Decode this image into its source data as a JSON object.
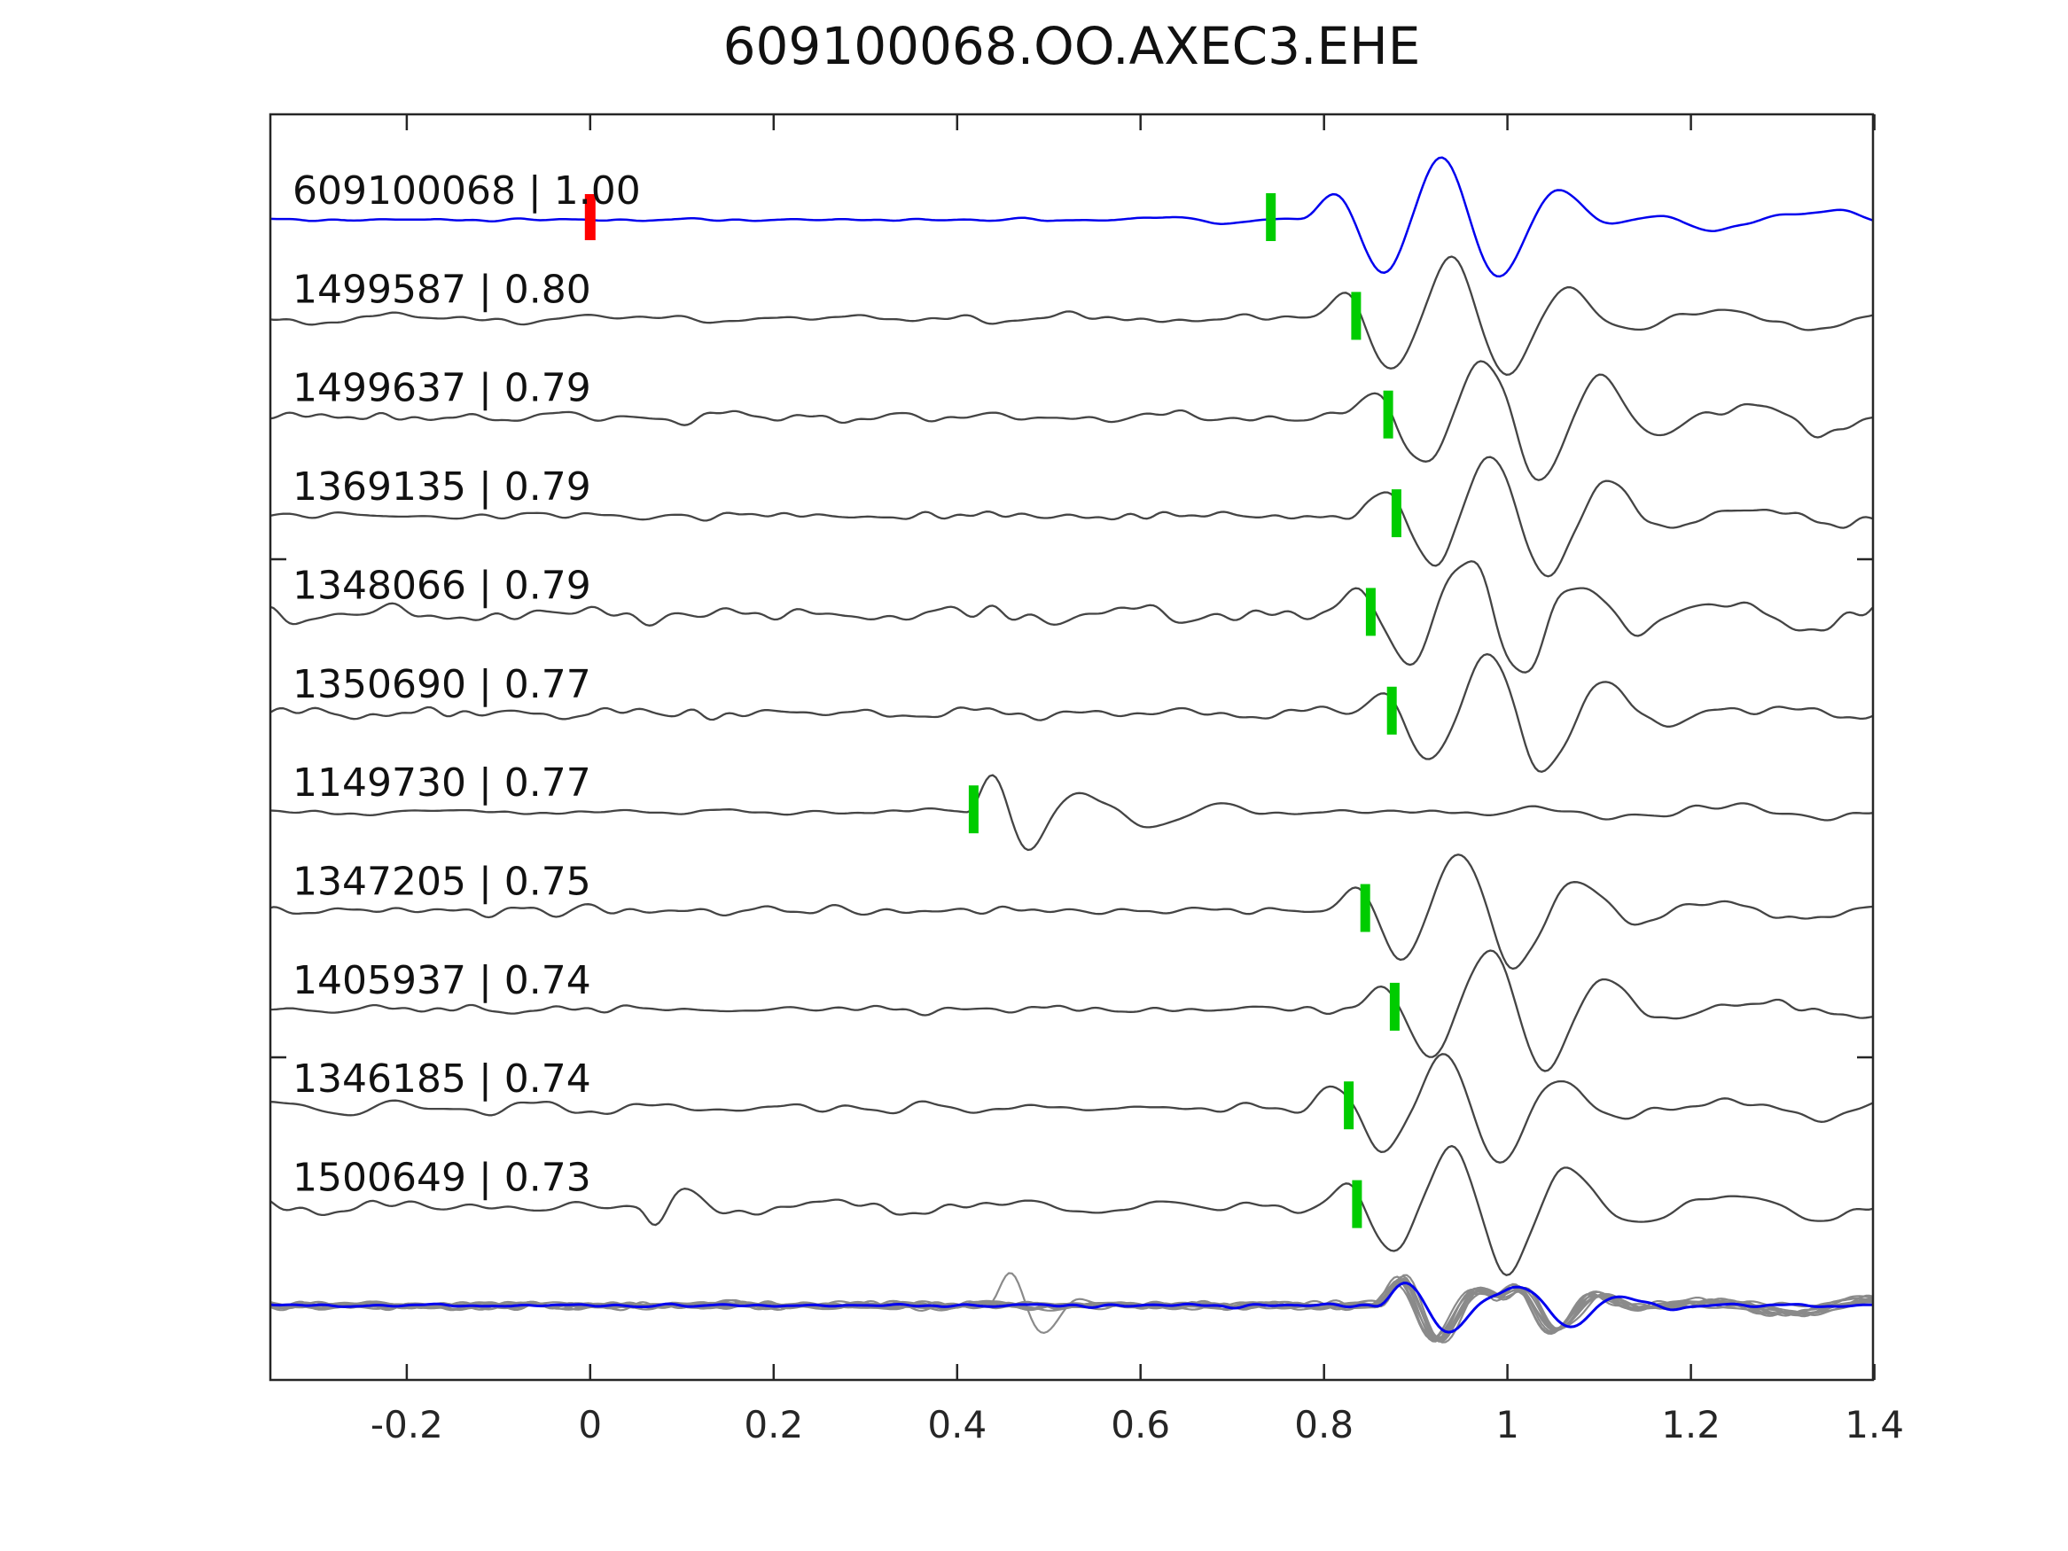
{
  "title": "609100068.OO.AXEC3.EHE",
  "colors": {
    "background": "#ffffff",
    "spine": "#262626",
    "master_trace": "#0000ee",
    "match_trace": "#444444",
    "stack_trace": "#8a8a8a",
    "stack_master": "#0000ee",
    "pick_marker": "#00cc00",
    "reference_marker": "#ff0000",
    "text": "#111111"
  },
  "chart_data": {
    "type": "line",
    "subtype": "seismic-waveform-correlation-section",
    "title": "609100068.OO.AXEC3.EHE",
    "xlabel": "",
    "ylabel": "",
    "grid": false,
    "legend": false,
    "xlim": [
      -0.3487,
      1.3985
    ],
    "x_ticks": [
      {
        "value": -0.2,
        "label": "-0.2"
      },
      {
        "value": 0,
        "label": "0"
      },
      {
        "value": 0.2,
        "label": "0.2"
      },
      {
        "value": 0.4,
        "label": "0.4"
      },
      {
        "value": 0.6,
        "label": "0.6"
      },
      {
        "value": 0.8,
        "label": "0.8"
      },
      {
        "value": 1,
        "label": "1"
      },
      {
        "value": 1.2,
        "label": "1.2"
      },
      {
        "value": 1.4,
        "label": "1.4"
      }
    ],
    "reference_time": 0.0,
    "traces": [
      {
        "id": "609100068",
        "correlation": "1.00",
        "label": "609100068 | 1.00",
        "role": "master",
        "pick_time": 0.742,
        "reference_time": 0.0,
        "seed": 11,
        "noise_amp": 2.3,
        "events": [
          [
            0.77,
            0.1,
            8.0,
            60,
            0
          ],
          [
            0.89,
            0.09,
            7.0,
            40,
            0
          ],
          [
            1.08,
            0.1,
            5.2,
            15,
            0
          ],
          [
            1.3,
            0.09,
            5.0,
            12,
            0
          ],
          [
            0.58,
            0.08,
            6.0,
            4,
            0
          ]
        ]
      },
      {
        "id": "1499587",
        "correlation": "0.80",
        "label": "1499587 | 0.80",
        "role": "match",
        "pick_time": 0.835,
        "seed": 22,
        "noise_amp": 8.0,
        "events": [
          [
            0.78,
            0.1,
            8.0,
            54,
            0
          ],
          [
            0.9,
            0.09,
            7.2,
            42,
            0
          ],
          [
            1.18,
            0.12,
            5.0,
            13,
            0
          ]
        ]
      },
      {
        "id": "1499637",
        "correlation": "0.79",
        "label": "1499637 | 0.79",
        "role": "match",
        "pick_time": 0.87,
        "seed": 33,
        "noise_amp": 10.5,
        "events": [
          [
            0.815,
            0.1,
            8.0,
            56,
            0
          ],
          [
            0.935,
            0.09,
            7.2,
            46,
            0
          ],
          [
            1.2,
            0.12,
            5.0,
            16,
            0
          ]
        ]
      },
      {
        "id": "1369135",
        "correlation": "0.79",
        "label": "1369135 | 0.79",
        "role": "match",
        "pick_time": 0.879,
        "seed": 44,
        "noise_amp": 7.0,
        "events": [
          [
            0.824,
            0.1,
            8.0,
            56,
            0
          ],
          [
            0.944,
            0.09,
            7.2,
            44,
            0
          ],
          [
            1.22,
            0.12,
            5.0,
            12,
            0
          ]
        ]
      },
      {
        "id": "1348066",
        "correlation": "0.79",
        "label": "1348066 | 0.79",
        "role": "match",
        "pick_time": 0.851,
        "seed": 55,
        "noise_amp": 13.0,
        "events": [
          [
            0.796,
            0.1,
            8.0,
            52,
            0
          ],
          [
            0.916,
            0.09,
            7.2,
            46,
            0
          ],
          [
            1.2,
            0.1,
            5.5,
            14,
            0
          ]
        ]
      },
      {
        "id": "1350690",
        "correlation": "0.77",
        "label": "1350690 | 0.77",
        "role": "match",
        "pick_time": 0.874,
        "seed": 66,
        "noise_amp": 8.5,
        "events": [
          [
            0.819,
            0.1,
            8.0,
            54,
            0
          ],
          [
            0.939,
            0.09,
            7.2,
            44,
            0
          ],
          [
            1.25,
            0.1,
            5.0,
            12,
            0
          ]
        ]
      },
      {
        "id": "1149730",
        "correlation": "0.77",
        "label": "1149730 | 0.77",
        "role": "match",
        "pick_time": 0.418,
        "seed": 77,
        "noise_amp": 5.5,
        "events": [
          [
            0.408,
            0.045,
            10.0,
            54,
            0
          ],
          [
            0.5,
            0.09,
            6.5,
            18,
            0
          ],
          [
            0.95,
            0.25,
            4.5,
            7,
            0
          ]
        ]
      },
      {
        "id": "1347205",
        "correlation": "0.75",
        "label": "1347205 | 0.75",
        "role": "match",
        "pick_time": 0.845,
        "seed": 88,
        "noise_amp": 7.5,
        "events": [
          [
            0.79,
            0.1,
            8.0,
            52,
            0
          ],
          [
            0.91,
            0.09,
            7.2,
            42,
            0
          ],
          [
            1.18,
            0.1,
            5.0,
            12,
            0
          ]
        ]
      },
      {
        "id": "1405937",
        "correlation": "0.74",
        "label": "1405937 | 0.74",
        "role": "match",
        "pick_time": 0.877,
        "seed": 99,
        "noise_amp": 7.5,
        "events": [
          [
            0.822,
            0.1,
            8.0,
            54,
            0
          ],
          [
            0.942,
            0.09,
            7.2,
            44,
            0
          ],
          [
            1.24,
            0.1,
            5.0,
            13,
            0
          ]
        ]
      },
      {
        "id": "1346185",
        "correlation": "0.74",
        "label": "1346185 | 0.74",
        "role": "match",
        "pick_time": 0.827,
        "seed": 110,
        "noise_amp": 8.5,
        "events": [
          [
            0.772,
            0.1,
            8.0,
            52,
            0
          ],
          [
            0.892,
            0.09,
            7.2,
            44,
            0
          ],
          [
            1.2,
            0.1,
            5.5,
            13,
            0
          ]
        ]
      },
      {
        "id": "1500649",
        "correlation": "0.73",
        "label": "1500649 | 0.73",
        "role": "match",
        "pick_time": 0.836,
        "seed": 121,
        "noise_amp": 11.0,
        "events": [
          [
            0.781,
            0.1,
            8.0,
            56,
            0
          ],
          [
            0.901,
            0.09,
            7.2,
            46,
            0
          ],
          [
            0.05,
            0.035,
            12.0,
            26,
            3.4
          ],
          [
            1.22,
            0.1,
            5.5,
            16,
            0
          ]
        ]
      }
    ],
    "stack": {
      "description": "all matched traces overlaid, aligned on detection, with master in blue",
      "traces": [
        {
          "role": "gray",
          "seed": 201,
          "noise_amp": 5.5,
          "events": [
            [
              0.85,
              0.055,
              10.2,
              40,
              0
            ],
            [
              0.98,
              0.05,
              10.2,
              33,
              0
            ],
            [
              1.16,
              0.15,
              5.0,
              9,
              0
            ]
          ]
        },
        {
          "role": "gray",
          "seed": 202,
          "noise_amp": 5.0,
          "events": [
            [
              0.856,
              0.055,
              10.2,
              42,
              0
            ],
            [
              0.986,
              0.05,
              10.2,
              31,
              0
            ],
            [
              1.17,
              0.15,
              5.0,
              9,
              0
            ]
          ]
        },
        {
          "role": "gray",
          "seed": 203,
          "noise_amp": 6.0,
          "events": [
            [
              0.848,
              0.055,
              10.2,
              38,
              0
            ],
            [
              0.978,
              0.05,
              10.2,
              35,
              0
            ],
            [
              1.15,
              0.15,
              5.0,
              10,
              0
            ]
          ]
        },
        {
          "role": "gray",
          "seed": 204,
          "noise_amp": 5.5,
          "events": [
            [
              0.43,
              0.04,
              11.0,
              42,
              0
            ],
            [
              0.853,
              0.055,
              10.2,
              40,
              0
            ],
            [
              0.983,
              0.05,
              10.2,
              30,
              0
            ]
          ]
        },
        {
          "role": "gray",
          "seed": 205,
          "noise_amp": 5.0,
          "events": [
            [
              0.859,
              0.055,
              10.2,
              44,
              0
            ],
            [
              0.989,
              0.05,
              10.2,
              34,
              0
            ],
            [
              1.18,
              0.15,
              5.0,
              8,
              0
            ]
          ]
        },
        {
          "role": "gray",
          "seed": 206,
          "noise_amp": 6.0,
          "events": [
            [
              0.846,
              0.055,
              10.2,
              40,
              0
            ],
            [
              0.976,
              0.05,
              10.2,
              36,
              0
            ],
            [
              1.14,
              0.15,
              5.0,
              9,
              0
            ]
          ]
        },
        {
          "role": "gray",
          "seed": 207,
          "noise_amp": 5.5,
          "events": [
            [
              0.854,
              0.055,
              10.2,
              43,
              0
            ],
            [
              0.984,
              0.05,
              10.2,
              32,
              0
            ],
            [
              1.16,
              0.15,
              5.0,
              10,
              0
            ]
          ]
        },
        {
          "role": "gray",
          "seed": 208,
          "noise_amp": 5.0,
          "events": [
            [
              0.851,
              0.055,
              10.2,
              39,
              0
            ],
            [
              0.981,
              0.05,
              10.2,
              34,
              0
            ],
            [
              1.17,
              0.15,
              5.0,
              9,
              0
            ]
          ]
        },
        {
          "role": "gray",
          "seed": 209,
          "noise_amp": 6.0,
          "events": [
            [
              0.857,
              0.055,
              10.2,
              41,
              0
            ],
            [
              0.987,
              0.05,
              10.2,
              33,
              0
            ],
            [
              1.15,
              0.15,
              5.0,
              9,
              0
            ]
          ]
        },
        {
          "role": "gray",
          "seed": 210,
          "noise_amp": 5.5,
          "events": [
            [
              0.849,
              0.055,
              10.2,
              42,
              0
            ],
            [
              0.979,
              0.05,
              10.2,
              35,
              0
            ],
            [
              1.16,
              0.15,
              5.0,
              10,
              0
            ]
          ]
        },
        {
          "role": "master",
          "seed": 250,
          "noise_amp": 3.2,
          "events": [
            [
              0.852,
              0.06,
              8.6,
              34,
              0
            ],
            [
              0.985,
              0.06,
              8.6,
              26,
              0
            ]
          ]
        }
      ]
    }
  }
}
